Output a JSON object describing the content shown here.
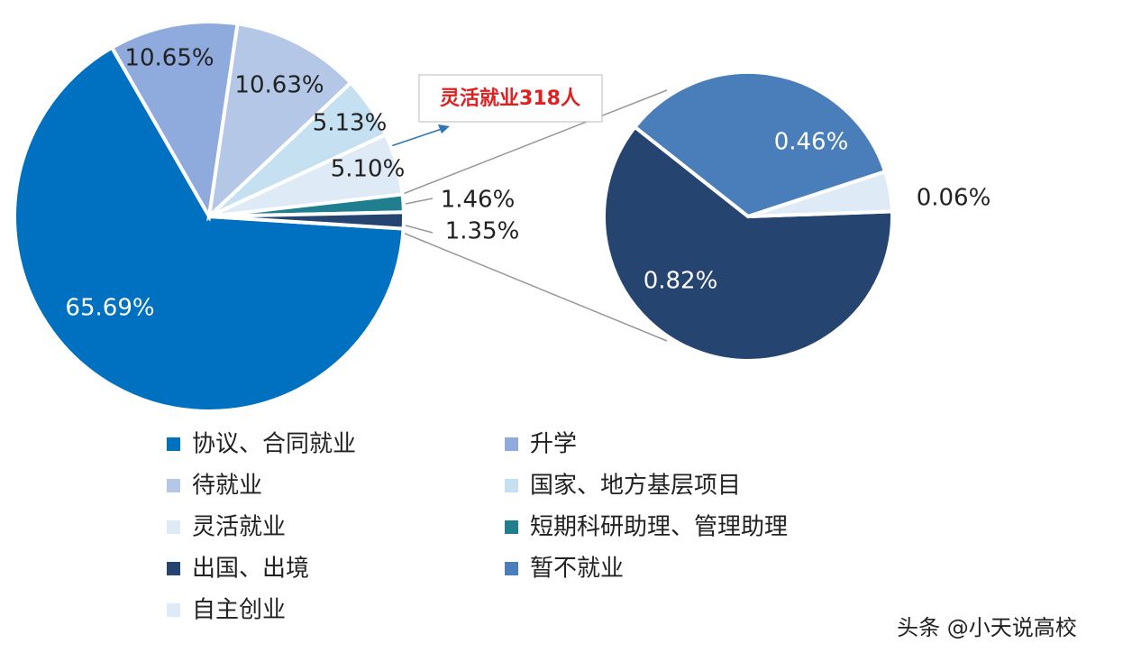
{
  "chart_data": {
    "type": "pie",
    "categories": [
      "协议、合同就业",
      "升学",
      "待就业",
      "国家、地方基层项目",
      "灵活就业",
      "短期科研助理、管理助理",
      "出国、出境",
      "暂不就业",
      "自主创业"
    ],
    "values": [
      65.69,
      10.65,
      10.63,
      5.13,
      5.1,
      1.46,
      0.82,
      0.46,
      0.06
    ],
    "value_labels": [
      "65.69%",
      "10.65%",
      "10.63%",
      "5.13%",
      "5.10%",
      "1.46%",
      "0.82%",
      "0.46%",
      "0.06%"
    ],
    "colors": [
      "#0070c0",
      "#8faadc",
      "#b4c7e7",
      "#c5e0f0",
      "#deebf7",
      "#1f7f8e",
      "#25446f",
      "#4a7ebb",
      "#deebf7"
    ],
    "secondary_count": 3,
    "other_value": 1.35,
    "other_value_label": "1.35%",
    "annotation": "灵活就业318人",
    "watermark": "头条 @小天说高校"
  }
}
